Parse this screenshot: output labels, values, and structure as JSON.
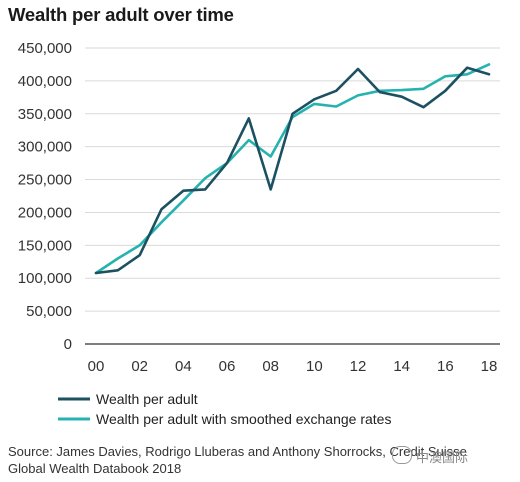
{
  "title": "Wealth per adult over time",
  "source_line1": "Source: James Davies, Rodrigo Lluberas and Anthony Shorrocks, Credit Suisse",
  "source_line2": "Global Wealth Databook 2018",
  "watermark": "中澳国际",
  "colors": {
    "wealth": "#1c5161",
    "smoothed": "#26b3b0",
    "grid": "#d9d9d9",
    "axis": "#333333"
  },
  "chart_data": {
    "type": "line",
    "x": [
      2000,
      2001,
      2002,
      2003,
      2004,
      2005,
      2006,
      2007,
      2008,
      2009,
      2010,
      2011,
      2012,
      2013,
      2014,
      2015,
      2016,
      2017,
      2018
    ],
    "xticks": [
      "00",
      "02",
      "04",
      "06",
      "08",
      "10",
      "12",
      "14",
      "16",
      "18"
    ],
    "yticks": [
      "0",
      "50,000",
      "100,000",
      "150,000",
      "200,000",
      "250,000",
      "300,000",
      "350,000",
      "400,000",
      "450,000"
    ],
    "ylim": [
      0,
      450000
    ],
    "grid": "horizontal",
    "legend_position": "bottom",
    "series": [
      {
        "name": "Wealth per adult",
        "values": [
          108000,
          112000,
          135000,
          205000,
          233000,
          235000,
          275000,
          343000,
          235000,
          350000,
          372000,
          385000,
          418000,
          383000,
          376000,
          360000,
          385000,
          420000,
          410000
        ]
      },
      {
        "name": "Wealth per adult with smoothed exchange rates",
        "values": [
          108000,
          130000,
          150000,
          185000,
          218000,
          252000,
          275000,
          310000,
          285000,
          345000,
          365000,
          361000,
          378000,
          385000,
          386000,
          388000,
          407000,
          410000,
          425000
        ]
      }
    ]
  }
}
